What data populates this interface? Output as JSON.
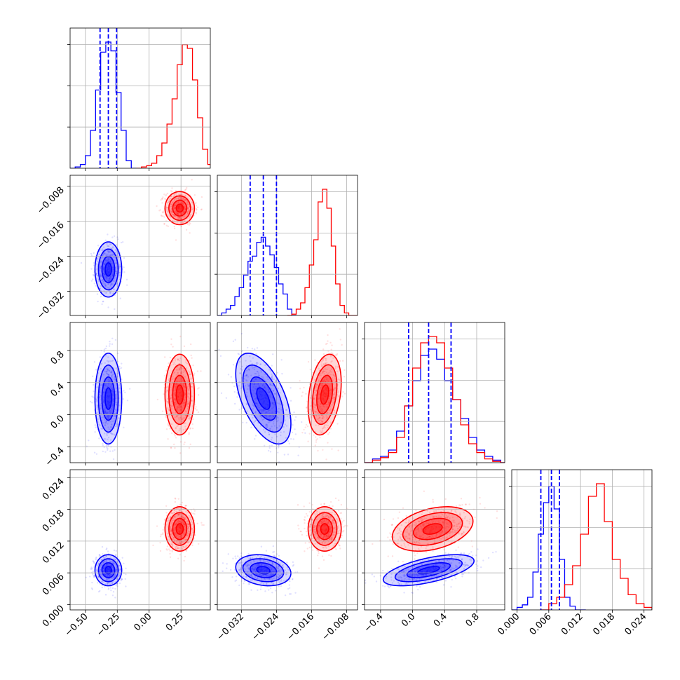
{
  "chart_data": {
    "type": "corner",
    "colors": {
      "series_a": "#0000ff",
      "series_b": "#ff0000"
    },
    "grid": true,
    "parameters": [
      {
        "range": [
          -0.62,
          0.48
        ],
        "ticks": [
          -0.5,
          -0.25,
          0.0,
          0.25
        ],
        "tick_labels": [
          "−0.50",
          "−0.25",
          "0.00",
          "0.25"
        ]
      },
      {
        "range": [
          -0.0375,
          -0.0055
        ],
        "ticks": [
          -0.032,
          -0.024,
          -0.016,
          -0.008
        ],
        "tick_labels": [
          "−0.032",
          "−0.024",
          "−0.016",
          "−0.008"
        ]
      },
      {
        "range": [
          -0.6,
          1.15
        ],
        "ticks": [
          -0.4,
          0.0,
          0.4,
          0.8
        ],
        "tick_labels": [
          "−0.4",
          "0.0",
          "0.4",
          "0.8"
        ]
      },
      {
        "range": [
          -0.001,
          0.0255
        ],
        "ticks": [
          0.0,
          0.006,
          0.012,
          0.018,
          0.024
        ],
        "tick_labels": [
          "0.000",
          "0.006",
          "0.012",
          "0.018",
          "0.024"
        ]
      }
    ],
    "series": [
      {
        "color": "#0000ff",
        "means": [
          -0.32,
          -0.027,
          0.2,
          0.0065
        ],
        "stds": [
          0.05,
          0.003,
          0.27,
          0.0014
        ],
        "correlations": {
          "1-0": 0.0,
          "2-0": 0.0,
          "2-1": -0.55,
          "3-0": 0.0,
          "3-1": -0.2,
          "3-2": 0.6
        },
        "quantiles": [
          [
            -0.385,
            -0.32,
            -0.255
          ],
          [
            -0.03,
            -0.027,
            -0.024
          ],
          [
            -0.05,
            0.2,
            0.48
          ],
          [
            0.0045,
            0.0065,
            0.008
          ]
        ],
        "histograms": [
          {
            "edges": [
              -0.62,
              -0.58,
              -0.54,
              -0.5,
              -0.46,
              -0.42,
              -0.38,
              -0.34,
              -0.3,
              -0.26,
              -0.22,
              -0.18,
              -0.14
            ],
            "counts": [
              0.0,
              0.01,
              0.03,
              0.1,
              0.3,
              0.62,
              0.92,
              1.0,
              0.93,
              0.6,
              0.3,
              0.06,
              0.0
            ]
          },
          {
            "edges": [
              -0.0375,
              -0.0365,
              -0.0355,
              -0.0345,
              -0.0335,
              -0.0325,
              -0.0315,
              -0.0305,
              -0.0295,
              -0.0285,
              -0.0275,
              -0.0265,
              -0.0255,
              -0.0245,
              -0.0235,
              -0.0225,
              -0.0215,
              -0.0205
            ],
            "counts": [
              0.0,
              0.02,
              0.05,
              0.08,
              0.15,
              0.22,
              0.32,
              0.43,
              0.47,
              0.58,
              0.62,
              0.55,
              0.48,
              0.38,
              0.25,
              0.17,
              0.05,
              0.0
            ]
          },
          {
            "edges": [
              -0.6,
              -0.5,
              -0.4,
              -0.3,
              -0.2,
              -0.1,
              0.0,
              0.1,
              0.2,
              0.3,
              0.4,
              0.5,
              0.6,
              0.7,
              0.8,
              0.9,
              1.0,
              1.1
            ],
            "counts": [
              0.0,
              0.03,
              0.05,
              0.1,
              0.25,
              0.45,
              0.65,
              0.85,
              0.9,
              0.82,
              0.65,
              0.5,
              0.35,
              0.2,
              0.1,
              0.05,
              0.02,
              0.0
            ]
          },
          {
            "edges": [
              -0.001,
              0.0,
              0.001,
              0.002,
              0.003,
              0.004,
              0.005,
              0.006,
              0.007,
              0.008,
              0.009,
              0.01,
              0.011,
              0.012
            ],
            "counts": [
              0.0,
              0.02,
              0.04,
              0.1,
              0.3,
              0.6,
              0.85,
              0.98,
              0.8,
              0.4,
              0.1,
              0.03,
              0.0,
              0.0
            ]
          }
        ]
      },
      {
        "color": "#ff0000",
        "means": [
          0.24,
          -0.013,
          0.25,
          0.0143
        ],
        "stds": [
          0.055,
          0.0018,
          0.24,
          0.002
        ],
        "correlations": {
          "1-0": 0.0,
          "2-0": 0.0,
          "2-1": 0.3,
          "3-0": 0.0,
          "3-1": 0.0,
          "3-2": 0.35
        },
        "quantiles": [
          [
            0.18,
            0.24,
            0.3
          ],
          [
            -0.015,
            -0.013,
            -0.011
          ],
          [
            0.0,
            0.25,
            0.5
          ],
          [
            0.012,
            0.0143,
            0.0165
          ]
        ],
        "histograms": [
          {
            "edges": [
              -0.1,
              -0.06,
              -0.02,
              0.02,
              0.06,
              0.1,
              0.14,
              0.18,
              0.22,
              0.26,
              0.3,
              0.34,
              0.38,
              0.42,
              0.46,
              0.5
            ],
            "counts": [
              0.0,
              0.01,
              0.02,
              0.04,
              0.1,
              0.2,
              0.35,
              0.55,
              0.82,
              0.98,
              0.95,
              0.7,
              0.4,
              0.15,
              0.03,
              0.0
            ]
          },
          {
            "edges": [
              -0.0215,
              -0.0205,
              -0.0195,
              -0.0185,
              -0.0175,
              -0.0165,
              -0.0155,
              -0.0145,
              -0.0135,
              -0.0125,
              -0.0115,
              -0.0105,
              -0.0095,
              -0.0085,
              -0.0075,
              -0.0065
            ],
            "counts": [
              0.0,
              0.01,
              0.05,
              0.1,
              0.22,
              0.4,
              0.6,
              0.9,
              1.0,
              0.85,
              0.55,
              0.25,
              0.08,
              0.02,
              0.0,
              0.0
            ]
          },
          {
            "edges": [
              -0.6,
              -0.5,
              -0.4,
              -0.3,
              -0.2,
              -0.1,
              0.0,
              0.1,
              0.2,
              0.3,
              0.4,
              0.5,
              0.6,
              0.7,
              0.8,
              0.9,
              1.0,
              1.1
            ],
            "counts": [
              0.0,
              0.02,
              0.04,
              0.08,
              0.2,
              0.45,
              0.75,
              0.95,
              1.0,
              0.95,
              0.75,
              0.5,
              0.3,
              0.15,
              0.08,
              0.03,
              0.01,
              0.0
            ]
          },
          {
            "edges": [
              0.0045,
              0.006,
              0.0075,
              0.009,
              0.0105,
              0.012,
              0.0135,
              0.015,
              0.0165,
              0.018,
              0.0195,
              0.021,
              0.0225,
              0.024,
              0.0255
            ],
            "counts": [
              0.0,
              0.05,
              0.1,
              0.2,
              0.35,
              0.6,
              0.9,
              1.0,
              0.7,
              0.4,
              0.25,
              0.12,
              0.05,
              0.02,
              0.0
            ]
          }
        ]
      }
    ]
  }
}
